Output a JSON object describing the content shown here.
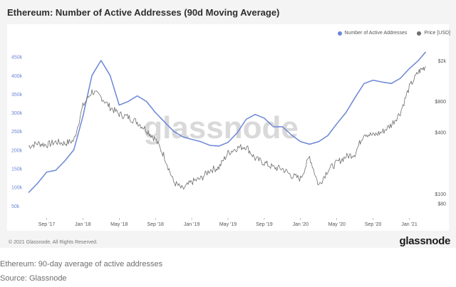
{
  "title": "Ethereum: Number of Active Addresses (90d Moving Average)",
  "watermark": "glassnode",
  "copyright": "© 2021 Glassnode. All Rights Reserved.",
  "brand": "glassnode",
  "caption": "Ethereum: 90-day average of active addresses",
  "source": "Source: Glassnode",
  "colors": {
    "addresses": "#6b86d6",
    "price": "#6e6e6e"
  },
  "legend": {
    "addresses": "Number of Active Addresses",
    "price": "Price [USD]"
  },
  "chart_data": {
    "type": "line",
    "title": "Ethereum: Number of Active Addresses (90d Moving Average)",
    "x_ticks": [
      {
        "t": 0.5,
        "label": "Sep '17"
      },
      {
        "t": 4.5,
        "label": "Jan '18"
      },
      {
        "t": 8.5,
        "label": "May '18"
      },
      {
        "t": 12.5,
        "label": "Sep '18"
      },
      {
        "t": 16.5,
        "label": "Jan '19"
      },
      {
        "t": 20.5,
        "label": "May '19"
      },
      {
        "t": 24.5,
        "label": "Sep '19"
      },
      {
        "t": 28.5,
        "label": "Jan '20"
      },
      {
        "t": 32.5,
        "label": "May '20"
      },
      {
        "t": 36.5,
        "label": "Sep '20"
      },
      {
        "t": 40.5,
        "label": "Jan '21"
      }
    ],
    "x_range": [
      -1.5,
      42.5
    ],
    "left_axis": {
      "ylim": [
        40000,
        480000
      ],
      "ticks": [
        50000,
        100000,
        150000,
        200000,
        250000,
        300000,
        350000,
        400000,
        450000
      ],
      "labels": [
        "50k",
        "100k",
        "150k",
        "200k",
        "250k",
        "300k",
        "350k",
        "400k",
        "450k"
      ]
    },
    "right_axis": {
      "scale": "log",
      "ylim": [
        70,
        2800
      ],
      "ticks": [
        80,
        100,
        400,
        800,
        2000
      ],
      "labels": [
        "$80",
        "$100",
        "$400",
        "$800",
        "$2k"
      ]
    },
    "series": [
      {
        "name": "Number of Active Addresses",
        "axis": "left",
        "points": [
          [
            -1.5,
            85000
          ],
          [
            -0.5,
            110000
          ],
          [
            0.5,
            140000
          ],
          [
            1.5,
            145000
          ],
          [
            2.5,
            170000
          ],
          [
            3.5,
            200000
          ],
          [
            4.5,
            290000
          ],
          [
            5.5,
            400000
          ],
          [
            6.5,
            440000
          ],
          [
            7.5,
            400000
          ],
          [
            8.5,
            320000
          ],
          [
            9.5,
            330000
          ],
          [
            10.5,
            345000
          ],
          [
            11.5,
            330000
          ],
          [
            12.5,
            300000
          ],
          [
            13.5,
            275000
          ],
          [
            14.5,
            250000
          ],
          [
            15.5,
            235000
          ],
          [
            16.5,
            228000
          ],
          [
            17.5,
            222000
          ],
          [
            18.5,
            212000
          ],
          [
            19.5,
            210000
          ],
          [
            20.5,
            220000
          ],
          [
            21.5,
            245000
          ],
          [
            22.5,
            282000
          ],
          [
            23.5,
            295000
          ],
          [
            24.5,
            285000
          ],
          [
            25.5,
            262000
          ],
          [
            26.5,
            262000
          ],
          [
            27.5,
            240000
          ],
          [
            28.5,
            222000
          ],
          [
            29.5,
            215000
          ],
          [
            30.5,
            222000
          ],
          [
            31.5,
            238000
          ],
          [
            32.5,
            270000
          ],
          [
            33.5,
            300000
          ],
          [
            34.5,
            340000
          ],
          [
            35.5,
            378000
          ],
          [
            36.5,
            387000
          ],
          [
            37.5,
            382000
          ],
          [
            38.5,
            378000
          ],
          [
            39.5,
            392000
          ],
          [
            40.5,
            418000
          ],
          [
            41.5,
            440000
          ],
          [
            42.3,
            463000
          ]
        ]
      },
      {
        "name": "Price [USD]",
        "axis": "right",
        "points": [
          [
            -1.5,
            290
          ],
          [
            -0.5,
            310
          ],
          [
            0.5,
            300
          ],
          [
            1.5,
            320
          ],
          [
            2.5,
            310
          ],
          [
            3.5,
            330
          ],
          [
            4.5,
            720
          ],
          [
            5.5,
            1000
          ],
          [
            6.5,
            880
          ],
          [
            7.5,
            700
          ],
          [
            8.5,
            600
          ],
          [
            9.5,
            560
          ],
          [
            10.5,
            500
          ],
          [
            11.5,
            420
          ],
          [
            12.5,
            340
          ],
          [
            13.5,
            230
          ],
          [
            14.5,
            130
          ],
          [
            15.5,
            110
          ],
          [
            16.5,
            130
          ],
          [
            17.5,
            140
          ],
          [
            18.5,
            170
          ],
          [
            19.5,
            180
          ],
          [
            20.5,
            250
          ],
          [
            21.5,
            280
          ],
          [
            22.5,
            290
          ],
          [
            23.5,
            220
          ],
          [
            24.5,
            200
          ],
          [
            25.5,
            180
          ],
          [
            26.5,
            175
          ],
          [
            27.5,
            150
          ],
          [
            28.5,
            140
          ],
          [
            29.5,
            230
          ],
          [
            30.5,
            120
          ],
          [
            31.5,
            170
          ],
          [
            32.5,
            200
          ],
          [
            33.5,
            230
          ],
          [
            34.5,
            245
          ],
          [
            35.5,
            390
          ],
          [
            36.5,
            370
          ],
          [
            37.5,
            400
          ],
          [
            38.5,
            470
          ],
          [
            39.5,
            620
          ],
          [
            40.5,
            1100
          ],
          [
            41.5,
            1550
          ],
          [
            42.3,
            1750
          ]
        ]
      }
    ]
  }
}
